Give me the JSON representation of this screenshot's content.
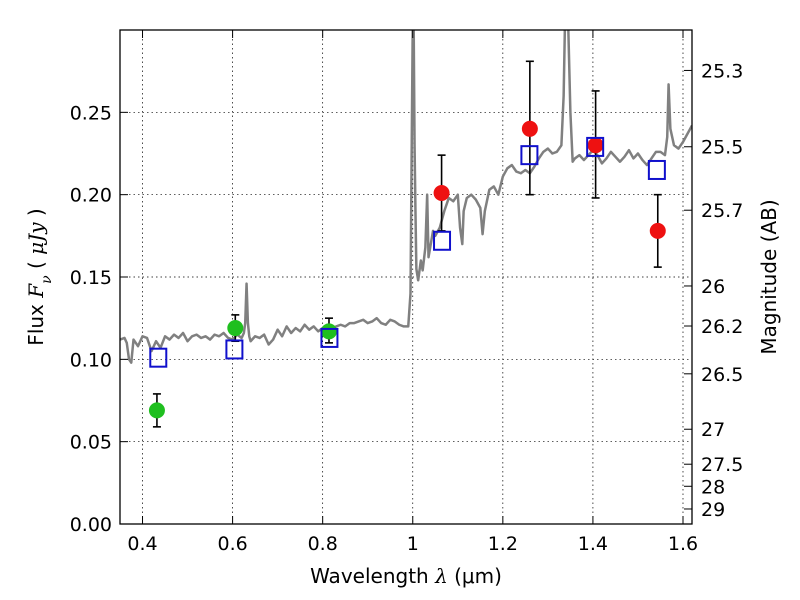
{
  "chart_data": {
    "type": "scatter",
    "title": "",
    "xlabel": "Wavelength  λ (μm)",
    "ylabel": "Flux  F_ν  ( μJy )",
    "ylabel_parts": {
      "prefix": "Flux  ",
      "symbol": "F",
      "subscript": "ν",
      "open": "  ( ",
      "unit": "μJy",
      "close": " )"
    },
    "xlabel_parts": {
      "prefix": "Wavelength  ",
      "symbol": "λ",
      "unit": " (μm)"
    },
    "right_ylabel": "Magnitude (AB)",
    "xlim": [
      0.35,
      1.62
    ],
    "ylim": [
      0.0,
      0.3
    ],
    "grid": true,
    "x_ticks": [
      {
        "value": 0.4,
        "label": "0.4"
      },
      {
        "value": 0.6,
        "label": "0.6"
      },
      {
        "value": 0.8,
        "label": "0.8"
      },
      {
        "value": 1.0,
        "label": "1"
      },
      {
        "value": 1.2,
        "label": "1.2"
      },
      {
        "value": 1.4,
        "label": "1.4"
      },
      {
        "value": 1.6,
        "label": "1.6"
      }
    ],
    "y_ticks": [
      {
        "value": 0.0,
        "label": "0.00"
      },
      {
        "value": 0.05,
        "label": "0.05"
      },
      {
        "value": 0.1,
        "label": "0.10"
      },
      {
        "value": 0.15,
        "label": "0.15"
      },
      {
        "value": 0.2,
        "label": "0.20"
      },
      {
        "value": 0.25,
        "label": "0.25"
      }
    ],
    "magnitude_ticks": [
      {
        "value": 25.3,
        "label": "25.3"
      },
      {
        "value": 25.5,
        "label": "25.5"
      },
      {
        "value": 25.7,
        "label": "25.7"
      },
      {
        "value": 26.0,
        "label": "26"
      },
      {
        "value": 26.2,
        "label": "26.2"
      },
      {
        "value": 26.5,
        "label": "26.5"
      },
      {
        "value": 27.0,
        "label": "27"
      },
      {
        "value": 27.5,
        "label": "27.5"
      },
      {
        "value": 28.0,
        "label": "28"
      },
      {
        "value": 29.0,
        "label": "29"
      }
    ],
    "colors": {
      "spectrum": "#808080",
      "optical_points": "#1fbf1f",
      "nir_points": "#ee1111",
      "model_squares": "#1010cc",
      "errorbar": "#000000"
    },
    "spectrum": [
      [
        0.35,
        0.112
      ],
      [
        0.36,
        0.113
      ],
      [
        0.365,
        0.11
      ],
      [
        0.37,
        0.1
      ],
      [
        0.375,
        0.098
      ],
      [
        0.38,
        0.112
      ],
      [
        0.39,
        0.108
      ],
      [
        0.4,
        0.114
      ],
      [
        0.41,
        0.113
      ],
      [
        0.42,
        0.105
      ],
      [
        0.43,
        0.111
      ],
      [
        0.44,
        0.107
      ],
      [
        0.45,
        0.114
      ],
      [
        0.46,
        0.112
      ],
      [
        0.47,
        0.115
      ],
      [
        0.48,
        0.113
      ],
      [
        0.49,
        0.116
      ],
      [
        0.5,
        0.111
      ],
      [
        0.51,
        0.114
      ],
      [
        0.52,
        0.115
      ],
      [
        0.53,
        0.113
      ],
      [
        0.54,
        0.114
      ],
      [
        0.55,
        0.112
      ],
      [
        0.56,
        0.115
      ],
      [
        0.57,
        0.114
      ],
      [
        0.58,
        0.116
      ],
      [
        0.59,
        0.113
      ],
      [
        0.6,
        0.112
      ],
      [
        0.61,
        0.115
      ],
      [
        0.62,
        0.113
      ],
      [
        0.625,
        0.116
      ],
      [
        0.628,
        0.122
      ],
      [
        0.631,
        0.146
      ],
      [
        0.634,
        0.122
      ],
      [
        0.637,
        0.114
      ],
      [
        0.64,
        0.111
      ],
      [
        0.65,
        0.114
      ],
      [
        0.66,
        0.113
      ],
      [
        0.67,
        0.115
      ],
      [
        0.68,
        0.109
      ],
      [
        0.69,
        0.112
      ],
      [
        0.7,
        0.118
      ],
      [
        0.71,
        0.114
      ],
      [
        0.72,
        0.12
      ],
      [
        0.73,
        0.116
      ],
      [
        0.74,
        0.119
      ],
      [
        0.75,
        0.117
      ],
      [
        0.76,
        0.121
      ],
      [
        0.77,
        0.118
      ],
      [
        0.78,
        0.12
      ],
      [
        0.79,
        0.117
      ],
      [
        0.8,
        0.119
      ],
      [
        0.81,
        0.121
      ],
      [
        0.82,
        0.118
      ],
      [
        0.83,
        0.12
      ],
      [
        0.84,
        0.121
      ],
      [
        0.85,
        0.12
      ],
      [
        0.86,
        0.122
      ],
      [
        0.87,
        0.122
      ],
      [
        0.88,
        0.123
      ],
      [
        0.89,
        0.124
      ],
      [
        0.9,
        0.122
      ],
      [
        0.91,
        0.123
      ],
      [
        0.92,
        0.125
      ],
      [
        0.93,
        0.122
      ],
      [
        0.94,
        0.121
      ],
      [
        0.95,
        0.124
      ],
      [
        0.96,
        0.123
      ],
      [
        0.97,
        0.121
      ],
      [
        0.98,
        0.12
      ],
      [
        0.99,
        0.12
      ],
      [
        0.995,
        0.14
      ],
      [
        0.998,
        0.24
      ],
      [
        1.0,
        0.305
      ],
      [
        1.002,
        0.305
      ],
      [
        1.004,
        0.23
      ],
      [
        1.006,
        0.19
      ],
      [
        1.008,
        0.155
      ],
      [
        1.012,
        0.148
      ],
      [
        1.018,
        0.16
      ],
      [
        1.022,
        0.154
      ],
      [
        1.028,
        0.168
      ],
      [
        1.032,
        0.2
      ],
      [
        1.035,
        0.162
      ],
      [
        1.04,
        0.17
      ],
      [
        1.045,
        0.178
      ],
      [
        1.05,
        0.175
      ],
      [
        1.06,
        0.18
      ],
      [
        1.07,
        0.19
      ],
      [
        1.08,
        0.198
      ],
      [
        1.09,
        0.196
      ],
      [
        1.1,
        0.2
      ],
      [
        1.105,
        0.18
      ],
      [
        1.11,
        0.17
      ],
      [
        1.113,
        0.19
      ],
      [
        1.12,
        0.198
      ],
      [
        1.13,
        0.2
      ],
      [
        1.14,
        0.197
      ],
      [
        1.15,
        0.192
      ],
      [
        1.155,
        0.176
      ],
      [
        1.16,
        0.19
      ],
      [
        1.17,
        0.203
      ],
      [
        1.18,
        0.205
      ],
      [
        1.19,
        0.2
      ],
      [
        1.2,
        0.211
      ],
      [
        1.21,
        0.216
      ],
      [
        1.22,
        0.218
      ],
      [
        1.23,
        0.214
      ],
      [
        1.24,
        0.213
      ],
      [
        1.25,
        0.215
      ],
      [
        1.26,
        0.213
      ],
      [
        1.27,
        0.217
      ],
      [
        1.28,
        0.222
      ],
      [
        1.29,
        0.226
      ],
      [
        1.3,
        0.228
      ],
      [
        1.31,
        0.225
      ],
      [
        1.32,
        0.226
      ],
      [
        1.33,
        0.23
      ],
      [
        1.335,
        0.26
      ],
      [
        1.338,
        0.305
      ],
      [
        1.345,
        0.305
      ],
      [
        1.35,
        0.25
      ],
      [
        1.355,
        0.22
      ],
      [
        1.36,
        0.222
      ],
      [
        1.37,
        0.224
      ],
      [
        1.38,
        0.221
      ],
      [
        1.39,
        0.224
      ],
      [
        1.4,
        0.227
      ],
      [
        1.41,
        0.224
      ],
      [
        1.42,
        0.219
      ],
      [
        1.43,
        0.222
      ],
      [
        1.44,
        0.226
      ],
      [
        1.45,
        0.223
      ],
      [
        1.46,
        0.22
      ],
      [
        1.47,
        0.223
      ],
      [
        1.48,
        0.227
      ],
      [
        1.49,
        0.222
      ],
      [
        1.5,
        0.225
      ],
      [
        1.51,
        0.221
      ],
      [
        1.52,
        0.218
      ],
      [
        1.53,
        0.222
      ],
      [
        1.54,
        0.226
      ],
      [
        1.55,
        0.226
      ],
      [
        1.56,
        0.224
      ],
      [
        1.565,
        0.235
      ],
      [
        1.568,
        0.267
      ],
      [
        1.572,
        0.24
      ],
      [
        1.58,
        0.23
      ],
      [
        1.59,
        0.228
      ],
      [
        1.6,
        0.232
      ],
      [
        1.61,
        0.237
      ],
      [
        1.62,
        0.242
      ]
    ],
    "series": [
      {
        "marker": "circle-green",
        "points": [
          {
            "x": 0.432,
            "y": 0.069,
            "yerr_low": 0.059,
            "yerr_high": 0.079
          },
          {
            "x": 0.606,
            "y": 0.119,
            "yerr_low": 0.111,
            "yerr_high": 0.127
          },
          {
            "x": 0.814,
            "y": 0.117,
            "yerr_low": 0.11,
            "yerr_high": 0.125
          }
        ]
      },
      {
        "marker": "circle-red",
        "points": [
          {
            "x": 1.064,
            "y": 0.201,
            "yerr_low": 0.178,
            "yerr_high": 0.224
          },
          {
            "x": 1.26,
            "y": 0.24,
            "yerr_low": 0.2,
            "yerr_high": 0.281
          },
          {
            "x": 1.406,
            "y": 0.23,
            "yerr_low": 0.198,
            "yerr_high": 0.263
          },
          {
            "x": 1.544,
            "y": 0.178,
            "yerr_low": 0.156,
            "yerr_high": 0.2
          }
        ]
      },
      {
        "marker": "square-blue",
        "points": [
          {
            "x": 0.435,
            "y": 0.101
          },
          {
            "x": 0.604,
            "y": 0.106
          },
          {
            "x": 0.815,
            "y": 0.113
          },
          {
            "x": 1.065,
            "y": 0.172
          },
          {
            "x": 1.259,
            "y": 0.224
          },
          {
            "x": 1.405,
            "y": 0.229
          },
          {
            "x": 1.542,
            "y": 0.215
          }
        ]
      }
    ]
  }
}
